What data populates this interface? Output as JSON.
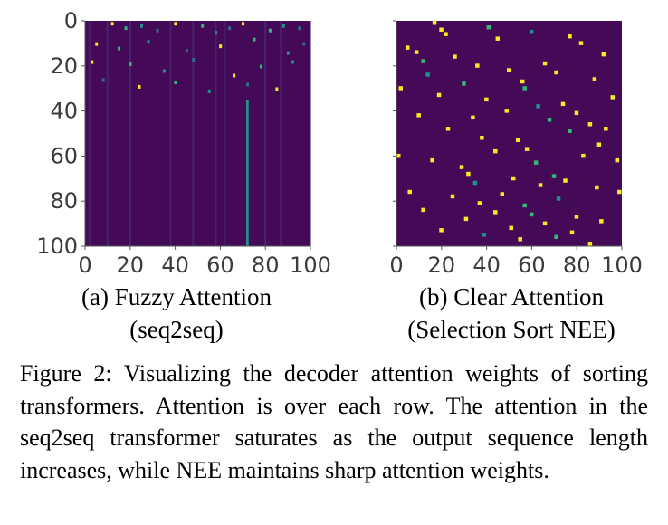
{
  "panels": [
    {
      "caption_line1": "(a) Fuzzy Attention",
      "caption_line2": "(seq2seq)"
    },
    {
      "caption_line1": "(b) Clear Attention",
      "caption_line2": "(Selection Sort NEE)"
    }
  ],
  "figure_caption": "Figure 2: Visualizing the decoder attention weights of sorting transformers. Attention is over each row. The attention in the seq2seq transformer saturates as the output sequence length increases, while NEE maintains sharp attention weights.",
  "colors": {
    "background_dark": "#440a58",
    "hot_yellow": "#fde725",
    "hot_green": "#35b779",
    "hot_teal": "#21918c",
    "hot_blue": "#31688e",
    "dim_purple": "#472c7a"
  },
  "chart_data": [
    {
      "type": "heatmap",
      "title": "",
      "x_ticks": [
        0,
        20,
        40,
        60,
        80,
        100
      ],
      "y_ticks": [
        0,
        20,
        40,
        60,
        80,
        100
      ],
      "xlim": [
        0,
        100
      ],
      "ylim": [
        100,
        0
      ],
      "colormap": "viridis",
      "description_values": {
        "bright_column_x": 72,
        "bright_column_y_range": [
          35,
          100
        ],
        "faint_columns_x": [
          2,
          10,
          20,
          38,
          48,
          58,
          62,
          80,
          87,
          100
        ],
        "sparse_top_points": [
          [
            12,
            1
          ],
          [
            18,
            3
          ],
          [
            25,
            2
          ],
          [
            32,
            4
          ],
          [
            40,
            1
          ],
          [
            52,
            2
          ],
          [
            58,
            5
          ],
          [
            64,
            3
          ],
          [
            70,
            1
          ],
          [
            82,
            4
          ],
          [
            88,
            2
          ],
          [
            95,
            3
          ],
          [
            5,
            10
          ],
          [
            15,
            12
          ],
          [
            28,
            9
          ],
          [
            45,
            13
          ],
          [
            60,
            11
          ],
          [
            75,
            8
          ],
          [
            90,
            14
          ],
          [
            97,
            10
          ],
          [
            3,
            18
          ],
          [
            20,
            19
          ],
          [
            35,
            22
          ],
          [
            48,
            17
          ],
          [
            66,
            24
          ],
          [
            78,
            20
          ],
          [
            92,
            18
          ],
          [
            8,
            26
          ],
          [
            24,
            29
          ],
          [
            40,
            27
          ],
          [
            55,
            31
          ],
          [
            72,
            28
          ],
          [
            85,
            30
          ]
        ]
      }
    },
    {
      "type": "heatmap",
      "title": "",
      "x_ticks": [
        0,
        20,
        40,
        60,
        80,
        100
      ],
      "y_ticks": [
        0,
        20,
        40,
        60,
        80,
        100
      ],
      "xlim": [
        0,
        100
      ],
      "ylim": [
        100,
        0
      ],
      "colormap": "viridis",
      "bright_cells": [
        [
          17,
          1
        ],
        [
          20,
          4
        ],
        [
          22,
          6
        ],
        [
          41,
          3
        ],
        [
          45,
          8
        ],
        [
          60,
          5
        ],
        [
          77,
          7
        ],
        [
          82,
          10
        ],
        [
          5,
          12
        ],
        [
          9,
          14
        ],
        [
          12,
          18
        ],
        [
          26,
          16
        ],
        [
          36,
          20
        ],
        [
          50,
          22
        ],
        [
          66,
          19
        ],
        [
          92,
          15
        ],
        [
          14,
          24
        ],
        [
          30,
          28
        ],
        [
          56,
          27
        ],
        [
          71,
          23
        ],
        [
          88,
          26
        ],
        [
          2,
          30
        ],
        [
          19,
          33
        ],
        [
          40,
          35
        ],
        [
          57,
          30
        ],
        [
          74,
          37
        ],
        [
          96,
          34
        ],
        [
          63,
          38
        ],
        [
          10,
          42
        ],
        [
          34,
          43
        ],
        [
          49,
          40
        ],
        [
          68,
          44
        ],
        [
          80,
          41
        ],
        [
          86,
          46
        ],
        [
          93,
          48
        ],
        [
          23,
          48
        ],
        [
          38,
          52
        ],
        [
          54,
          53
        ],
        [
          77,
          49
        ],
        [
          90,
          55
        ],
        [
          58,
          57
        ],
        [
          1,
          60
        ],
        [
          16,
          62
        ],
        [
          29,
          65
        ],
        [
          44,
          58
        ],
        [
          62,
          63
        ],
        [
          83,
          60
        ],
        [
          98,
          62
        ],
        [
          32,
          68
        ],
        [
          35,
          72
        ],
        [
          52,
          70
        ],
        [
          64,
          73
        ],
        [
          70,
          69
        ],
        [
          89,
          74
        ],
        [
          75,
          71
        ],
        [
          6,
          76
        ],
        [
          25,
          78
        ],
        [
          37,
          81
        ],
        [
          47,
          77
        ],
        [
          57,
          82
        ],
        [
          72,
          79
        ],
        [
          99,
          76
        ],
        [
          12,
          84
        ],
        [
          31,
          88
        ],
        [
          44,
          85
        ],
        [
          51,
          92
        ],
        [
          60,
          86
        ],
        [
          66,
          90
        ],
        [
          80,
          87
        ],
        [
          91,
          89
        ],
        [
          20,
          93
        ],
        [
          39,
          95
        ],
        [
          55,
          97
        ],
        [
          71,
          96
        ],
        [
          78,
          94
        ],
        [
          86,
          99
        ]
      ]
    }
  ]
}
